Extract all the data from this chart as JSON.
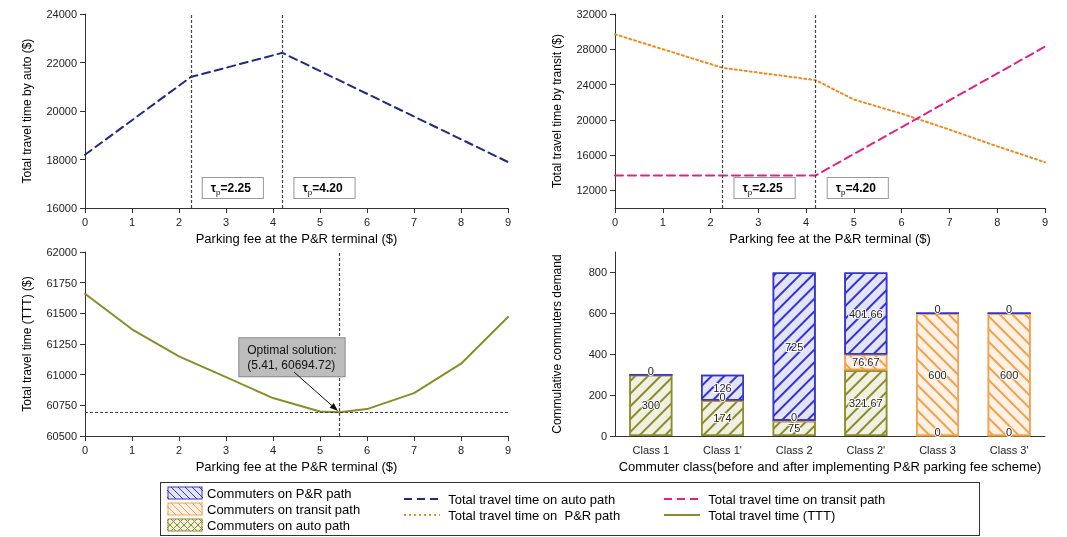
{
  "chart_data": [
    {
      "type": "line",
      "xlabel": "Parking fee at the P&R terminal ($)",
      "ylabel": "Total travel time by auto ($)",
      "xlim": [
        0,
        9
      ],
      "xticks": [
        0,
        1,
        2,
        3,
        4,
        5,
        6,
        7,
        8,
        9
      ],
      "ylim": [
        16000,
        24000
      ],
      "yticks": [
        16000,
        18000,
        20000,
        22000,
        24000
      ],
      "marker": "none",
      "legend": "bottom",
      "series": [
        {
          "name": "Total travel time on auto path",
          "color": "#1f2a80",
          "line_style": "dashed",
          "x": [
            0,
            2.25,
            4.2,
            9
          ],
          "values": [
            18200,
            21400,
            22400,
            17900
          ]
        }
      ],
      "ref_lines": [
        {
          "axis": "x",
          "value": 2.25,
          "label": "τ$_{p}$=2.25"
        },
        {
          "axis": "x",
          "value": 4.2,
          "label": "τ$_{p}$=4.20"
        }
      ]
    },
    {
      "type": "line",
      "ylabel": "Total travel time by transit ($)",
      "xlabel": "Parking fee at the P&R terminal ($)",
      "xlim": [
        0,
        9
      ],
      "xticks": [
        0,
        1,
        2,
        3,
        4,
        5,
        6,
        7,
        8,
        9
      ],
      "ylim": [
        10000,
        32000
      ],
      "yticks": [
        12000,
        16000,
        20000,
        24000,
        28000,
        32000
      ],
      "marker": "none",
      "legend": "bottom",
      "series": [
        {
          "name": "Total travel time on  P&R path",
          "color": "#f08c1e",
          "line_style": "dotted",
          "x": [
            0,
            2.25,
            4.2,
            5,
            6,
            7,
            8,
            9
          ],
          "values": [
            29700,
            25900,
            24500,
            22300,
            20700,
            18900,
            17000,
            15200
          ]
        },
        {
          "name": "Total travel time on transit path",
          "color": "#e0218a",
          "line_style": "dashed",
          "x": [
            0,
            4.2,
            9
          ],
          "values": [
            13700,
            13700,
            28300
          ]
        }
      ],
      "ref_lines": [
        {
          "axis": "x",
          "value": 2.25,
          "label": "τ$_{p}$=2.25"
        },
        {
          "axis": "x",
          "value": 4.2,
          "label": "τ$_{p}$=4.20"
        }
      ]
    },
    {
      "type": "line",
      "xlabel": "Parking fee at the P&R terminal ($)",
      "ylabel": "Total travel time (TTT) ($)",
      "xlim": [
        0,
        9
      ],
      "xticks": [
        0,
        1,
        2,
        3,
        4,
        5,
        6,
        7,
        8,
        9
      ],
      "ylim": [
        60500,
        62000
      ],
      "yticks": [
        60500,
        60750,
        61000,
        61250,
        61500,
        61750,
        62000
      ],
      "marker": "none",
      "legend": "bottom",
      "series": [
        {
          "name": "Total travel time (TTT)",
          "color": "#8c8c2a",
          "line_style": "solid",
          "x": [
            0,
            1,
            2,
            3,
            4,
            5,
            5.41,
            6,
            7,
            8,
            9
          ],
          "values": [
            61660,
            61370,
            61150,
            60980,
            60810,
            60700,
            60694.72,
            60720,
            60850,
            61090,
            61470
          ]
        }
      ],
      "ref_lines": [
        {
          "axis": "x",
          "value": 5.41
        },
        {
          "axis": "y",
          "value": 60694.72
        }
      ],
      "annotations": [
        {
          "text": "Optimal solution:\n(5.41, 60694.72)",
          "x": 5.41,
          "y": 60694.72
        }
      ]
    },
    {
      "type": "bar",
      "stacked": true,
      "xlabel": "Commuter class(before and after implementing P&R parking fee scheme)",
      "ylabel": "Commulative commuters demand",
      "categories": [
        "Class 1",
        "Class 1'",
        "Class 2",
        "Class 2'",
        "Class 3",
        "Class 3'"
      ],
      "ylim": [
        0,
        900
      ],
      "yticks": [
        0,
        200,
        400,
        600,
        800
      ],
      "legend": "bottom",
      "series": [
        {
          "name": "Commuters on auto path",
          "color": "#8c8c2a",
          "values": [
            300,
            174,
            75,
            321.67,
            0,
            0
          ],
          "value_labels": [
            "300",
            "174",
            "75",
            "321.67",
            "0",
            "0"
          ]
        },
        {
          "name": "Commuters on transit path",
          "color": "#f5a04a",
          "values": [
            0,
            0,
            0,
            76.67,
            600,
            600
          ],
          "value_labels": [
            "0",
            "0",
            "0",
            "76.67",
            "600",
            "600"
          ]
        },
        {
          "name": "Commuters on P&R path",
          "color": "#3434d0",
          "values": [
            0,
            126,
            725,
            401.66,
            0,
            0
          ],
          "value_labels": [
            null,
            "126",
            "725",
            "401.66",
            "0",
            "0"
          ]
        }
      ]
    }
  ]
}
